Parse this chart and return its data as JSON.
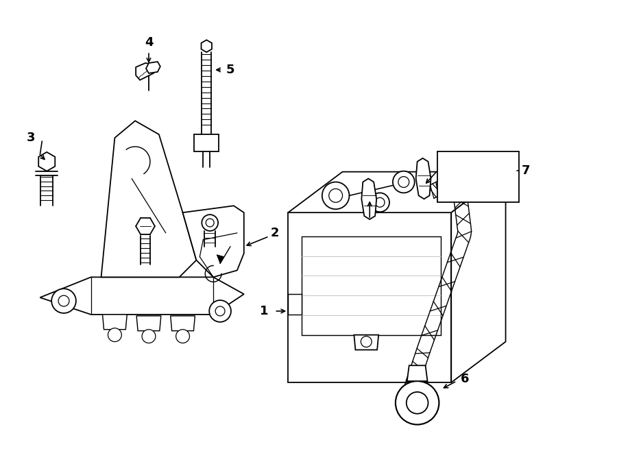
{
  "background_color": "#ffffff",
  "line_color": "#000000",
  "label_color": "#000000",
  "fig_width": 9.0,
  "fig_height": 6.61,
  "dpi": 100,
  "label_fontsize": 13,
  "lw": 1.3
}
